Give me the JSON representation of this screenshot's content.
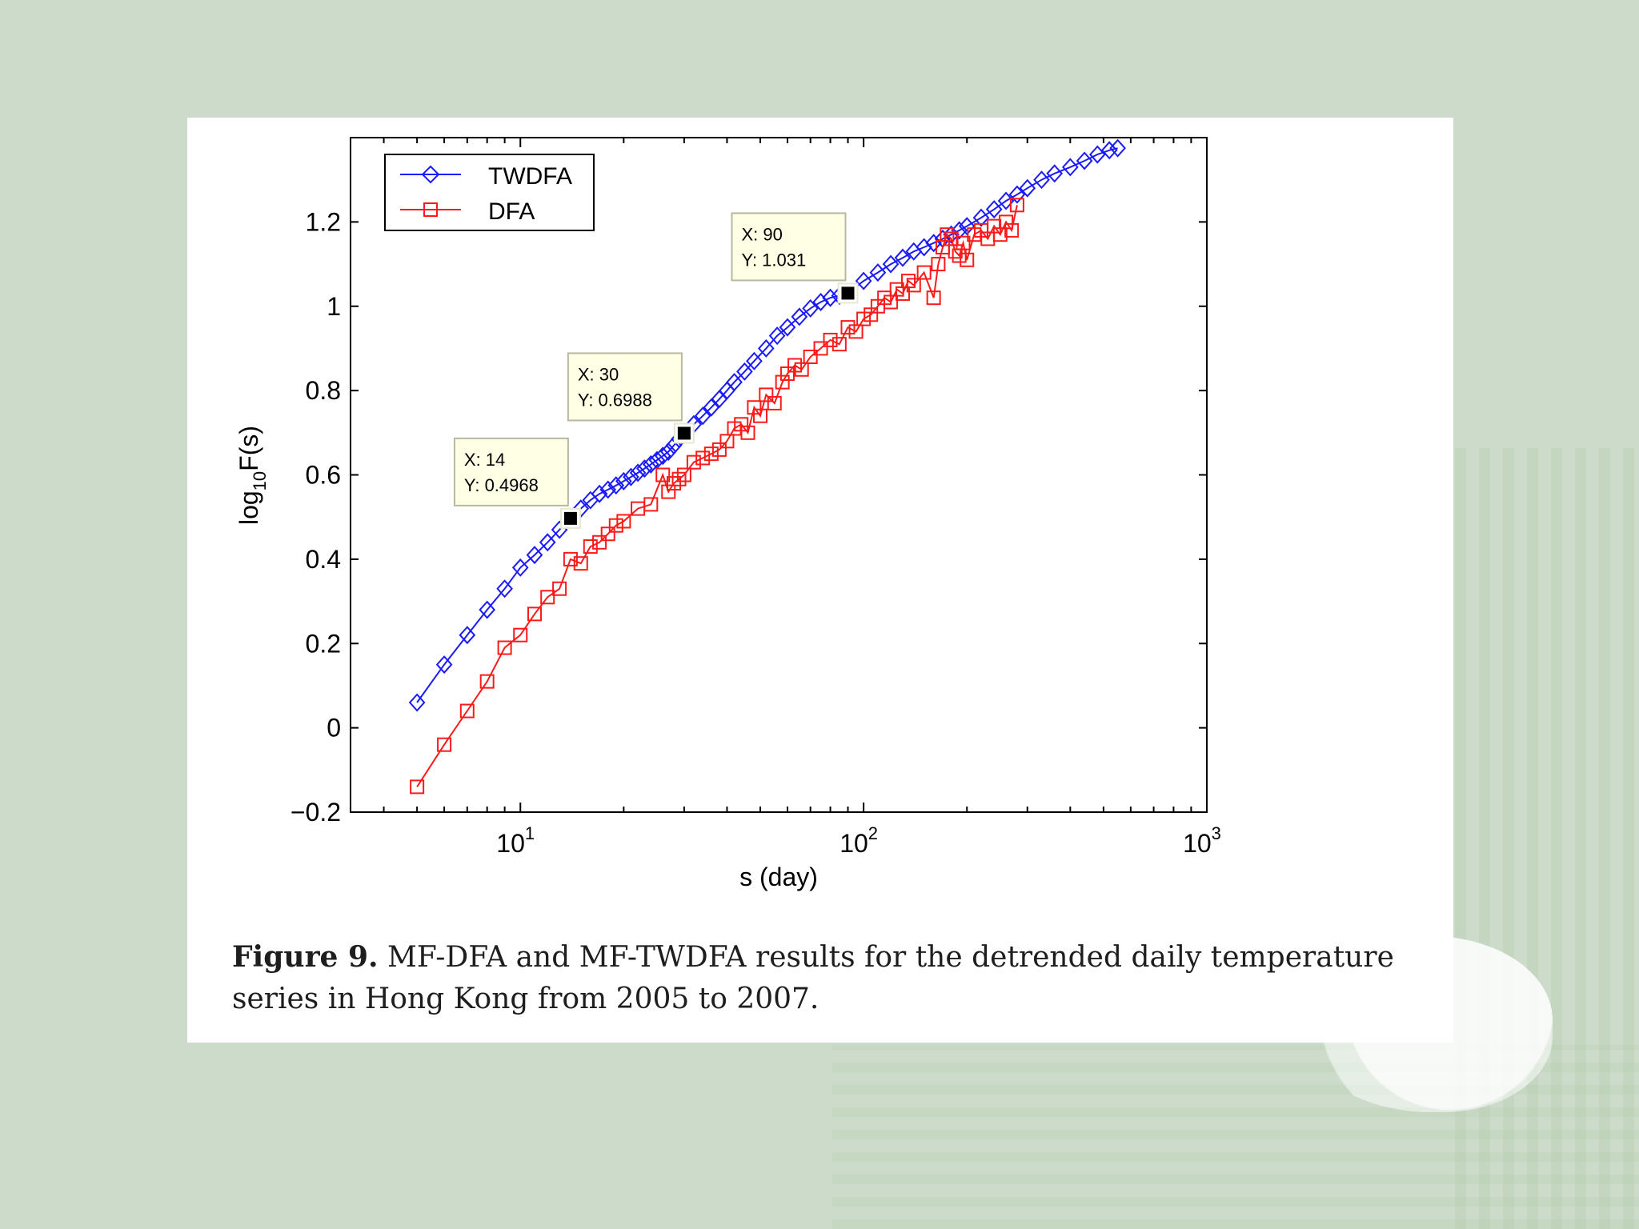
{
  "caption": {
    "label": "Figure 9.",
    "text": "MF-DFA and MF-TWDFA results for the detrended daily temperature series in Hong Kong from 2005 to 2007."
  },
  "chart_data": {
    "type": "line",
    "xscale": "log",
    "xlim": [
      3.2,
      1000
    ],
    "ylim": [
      -0.2,
      1.4
    ],
    "xlabel": "s (day)",
    "ylabel": "log",
    "ylabel_sub": "10",
    "ylabel_tail": "F(s)",
    "x_ticks": [
      {
        "value": 10,
        "base": "10",
        "exp": "1"
      },
      {
        "value": 100,
        "base": "10",
        "exp": "2"
      },
      {
        "value": 1000,
        "base": "10",
        "exp": "3"
      }
    ],
    "y_ticks": [
      {
        "value": -0.2,
        "label": "−0.2"
      },
      {
        "value": 0,
        "label": "0"
      },
      {
        "value": 0.2,
        "label": "0.2"
      },
      {
        "value": 0.4,
        "label": "0.4"
      },
      {
        "value": 0.6,
        "label": "0.6"
      },
      {
        "value": 0.8,
        "label": "0.8"
      },
      {
        "value": 1,
        "label": "1"
      },
      {
        "value": 1.2,
        "label": "1.2"
      }
    ],
    "legend_position": "top-left",
    "series": [
      {
        "name": "TWDFA",
        "color": "#1a1aff",
        "marker": "diamond",
        "x": [
          5,
          6,
          7,
          8,
          9,
          10,
          11,
          12,
          13,
          14,
          15,
          16,
          17,
          18,
          19,
          20,
          21,
          22,
          23,
          24,
          25,
          26,
          27,
          28,
          29,
          30,
          32,
          34,
          36,
          38,
          40,
          42,
          45,
          48,
          52,
          56,
          60,
          65,
          70,
          75,
          80,
          85,
          90,
          100,
          110,
          120,
          130,
          140,
          150,
          160,
          170,
          180,
          190,
          200,
          220,
          240,
          260,
          280,
          300,
          330,
          360,
          400,
          440,
          480,
          520,
          550
        ],
        "y": [
          0.06,
          0.15,
          0.22,
          0.28,
          0.33,
          0.38,
          0.41,
          0.44,
          0.47,
          0.4968,
          0.52,
          0.54,
          0.555,
          0.565,
          0.575,
          0.585,
          0.595,
          0.605,
          0.615,
          0.625,
          0.635,
          0.645,
          0.655,
          0.67,
          0.685,
          0.6988,
          0.72,
          0.74,
          0.76,
          0.78,
          0.8,
          0.82,
          0.845,
          0.87,
          0.9,
          0.93,
          0.95,
          0.975,
          0.995,
          1.01,
          1.02,
          1.025,
          1.031,
          1.06,
          1.08,
          1.1,
          1.115,
          1.13,
          1.14,
          1.15,
          1.16,
          1.17,
          1.18,
          1.19,
          1.21,
          1.23,
          1.25,
          1.265,
          1.28,
          1.3,
          1.315,
          1.33,
          1.345,
          1.36,
          1.37,
          1.375
        ]
      },
      {
        "name": "DFA",
        "color": "#ff1a1a",
        "marker": "square",
        "x": [
          5,
          6,
          7,
          8,
          9,
          10,
          11,
          12,
          13,
          14,
          15,
          16,
          17,
          18,
          19,
          20,
          22,
          24,
          26,
          27,
          28,
          29,
          30,
          32,
          34,
          36,
          38,
          40,
          42,
          44,
          46,
          48,
          50,
          52,
          55,
          58,
          60,
          63,
          66,
          70,
          75,
          80,
          85,
          90,
          95,
          100,
          105,
          110,
          115,
          120,
          125,
          130,
          135,
          140,
          150,
          160,
          165,
          170,
          175,
          180,
          185,
          190,
          195,
          200,
          210,
          220,
          230,
          240,
          250,
          260,
          270,
          280
        ],
        "y": [
          -0.14,
          -0.04,
          0.04,
          0.11,
          0.19,
          0.22,
          0.27,
          0.31,
          0.33,
          0.4,
          0.39,
          0.43,
          0.44,
          0.46,
          0.48,
          0.49,
          0.52,
          0.53,
          0.6,
          0.56,
          0.58,
          0.59,
          0.6,
          0.63,
          0.64,
          0.65,
          0.66,
          0.68,
          0.71,
          0.72,
          0.7,
          0.76,
          0.74,
          0.79,
          0.77,
          0.82,
          0.84,
          0.86,
          0.85,
          0.88,
          0.9,
          0.92,
          0.91,
          0.95,
          0.94,
          0.97,
          0.98,
          1.0,
          1.02,
          1.01,
          1.04,
          1.03,
          1.06,
          1.05,
          1.08,
          1.02,
          1.1,
          1.14,
          1.17,
          1.16,
          1.13,
          1.12,
          1.15,
          1.11,
          1.17,
          1.18,
          1.16,
          1.19,
          1.17,
          1.2,
          1.18,
          1.24
        ]
      }
    ],
    "datatips": [
      {
        "x": 14,
        "y": 0.4968,
        "line1": "X: 14",
        "line2": "Y: 0.4968"
      },
      {
        "x": 30,
        "y": 0.6988,
        "line1": "X: 30",
        "line2": "Y: 0.6988"
      },
      {
        "x": 90,
        "y": 1.031,
        "line1": "X: 90",
        "line2": "Y: 1.031"
      }
    ]
  }
}
